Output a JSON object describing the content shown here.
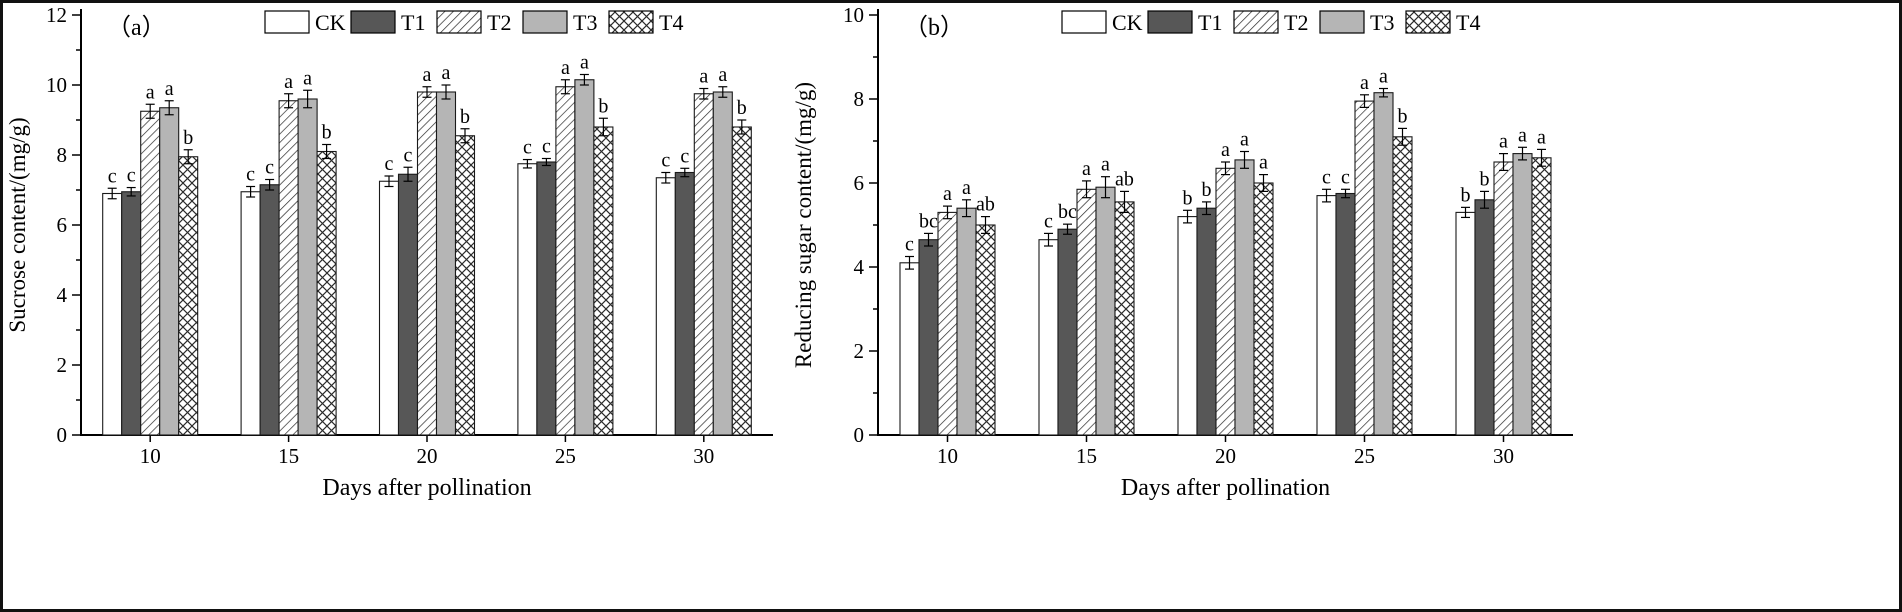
{
  "figure": {
    "background": "#ffffff",
    "border_color": "#111111",
    "axis_color": "#000000"
  },
  "chart_data": [
    {
      "type": "bar",
      "panel_label": "（a）",
      "title": "",
      "xlabel": "Days after pollination",
      "ylabel": "Sucrose content/(mg/g)",
      "ylim": [
        0,
        12
      ],
      "ytick_step": 2,
      "minor_step": 1,
      "grid": false,
      "legend_position": "top",
      "categories": [
        "10",
        "15",
        "20",
        "25",
        "30"
      ],
      "series": [
        {
          "name": "CK",
          "style": "solid-white",
          "fill": "#ffffff",
          "values": [
            6.9,
            6.95,
            7.25,
            7.75,
            7.35
          ],
          "errors": [
            0.15,
            0.15,
            0.15,
            0.12,
            0.15
          ],
          "sig_labels": [
            "c",
            "c",
            "c",
            "c",
            "c"
          ]
        },
        {
          "name": "T1",
          "style": "solid-darkgray",
          "fill": "#575757",
          "values": [
            6.95,
            7.15,
            7.45,
            7.8,
            7.5
          ],
          "errors": [
            0.12,
            0.15,
            0.2,
            0.1,
            0.12
          ],
          "sig_labels": [
            "c",
            "c",
            "c",
            "c",
            "c"
          ]
        },
        {
          "name": "T2",
          "style": "hatch-diagonal",
          "fill": "#ffffff",
          "values": [
            9.25,
            9.55,
            9.8,
            9.95,
            9.75
          ],
          "errors": [
            0.2,
            0.2,
            0.15,
            0.2,
            0.15
          ],
          "sig_labels": [
            "a",
            "a",
            "a",
            "a",
            "a"
          ]
        },
        {
          "name": "T3",
          "style": "solid-lightgray",
          "fill": "#b5b5b5",
          "values": [
            9.35,
            9.6,
            9.8,
            10.15,
            9.8
          ],
          "errors": [
            0.2,
            0.25,
            0.2,
            0.15,
            0.15
          ],
          "sig_labels": [
            "a",
            "a",
            "a",
            "a",
            "a"
          ]
        },
        {
          "name": "T4",
          "style": "hatch-cross",
          "fill": "#ffffff",
          "values": [
            7.95,
            8.1,
            8.55,
            8.8,
            8.8
          ],
          "errors": [
            0.2,
            0.2,
            0.2,
            0.25,
            0.2
          ],
          "sig_labels": [
            "b",
            "b",
            "b",
            "b",
            "b"
          ]
        }
      ]
    },
    {
      "type": "bar",
      "panel_label": "（b）",
      "title": "",
      "xlabel": "Days after pollination",
      "ylabel": "Reducing sugar content/(mg/g)",
      "ylim": [
        0,
        10
      ],
      "ytick_step": 2,
      "minor_step": 1,
      "grid": false,
      "legend_position": "top",
      "categories": [
        "10",
        "15",
        "20",
        "25",
        "30"
      ],
      "series": [
        {
          "name": "CK",
          "style": "solid-white",
          "fill": "#ffffff",
          "values": [
            4.1,
            4.65,
            5.2,
            5.7,
            5.3
          ],
          "errors": [
            0.15,
            0.15,
            0.15,
            0.15,
            0.12
          ],
          "sig_labels": [
            "c",
            "c",
            "b",
            "c",
            "b"
          ]
        },
        {
          "name": "T1",
          "style": "solid-darkgray",
          "fill": "#575757",
          "values": [
            4.65,
            4.9,
            5.4,
            5.75,
            5.6
          ],
          "errors": [
            0.15,
            0.12,
            0.15,
            0.1,
            0.2
          ],
          "sig_labels": [
            "bc",
            "bc",
            "b",
            "c",
            "b"
          ]
        },
        {
          "name": "T2",
          "style": "hatch-diagonal",
          "fill": "#ffffff",
          "values": [
            5.3,
            5.85,
            6.35,
            7.95,
            6.5
          ],
          "errors": [
            0.15,
            0.2,
            0.15,
            0.15,
            0.2
          ],
          "sig_labels": [
            "a",
            "a",
            "a",
            "a",
            "a"
          ]
        },
        {
          "name": "T3",
          "style": "solid-lightgray",
          "fill": "#b5b5b5",
          "values": [
            5.4,
            5.9,
            6.55,
            8.15,
            6.7
          ],
          "errors": [
            0.2,
            0.25,
            0.2,
            0.1,
            0.15
          ],
          "sig_labels": [
            "a",
            "a",
            "a",
            "a",
            "a"
          ]
        },
        {
          "name": "T4",
          "style": "hatch-cross",
          "fill": "#ffffff",
          "values": [
            5.0,
            5.55,
            6.0,
            7.1,
            6.6
          ],
          "errors": [
            0.2,
            0.25,
            0.2,
            0.2,
            0.2
          ],
          "sig_labels": [
            "ab",
            "ab",
            "a",
            "b",
            "a"
          ]
        }
      ]
    }
  ]
}
